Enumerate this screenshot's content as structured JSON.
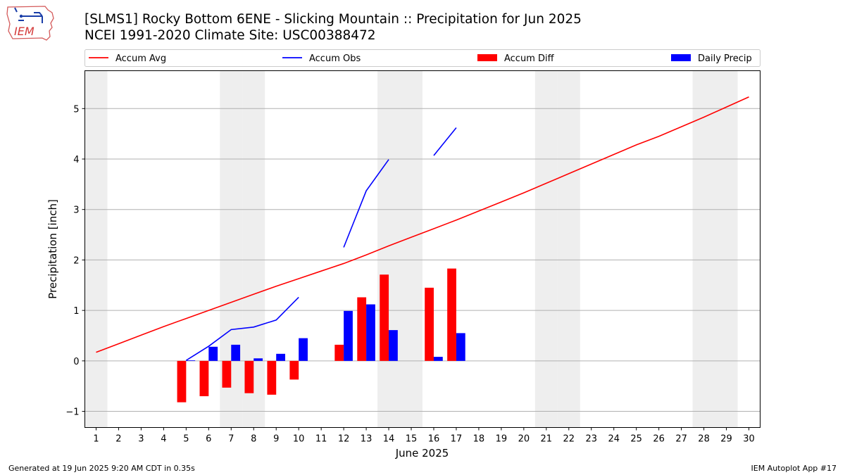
{
  "header": {
    "title_line1": "[SLMS1] Rocky Bottom 6ENE - Slicking Mountain :: Precipitation for Jun 2025",
    "title_line2": "NCEI 1991-2020 Climate Site: USC00388472",
    "logo_text": "IEM"
  },
  "footer": {
    "left": "Generated at 19 Jun 2025 9:20 AM CDT in 0.35s",
    "right": "IEM Autoplot App #17"
  },
  "colors": {
    "avg": "#ff0000",
    "obs": "#0000ff",
    "diff": "#ff0000",
    "daily": "#0000ff",
    "weekend": "#eeeeee",
    "grid": "#b0b0b0"
  },
  "chart_data": {
    "type": "bar",
    "xlabel": "June 2025",
    "ylabel": "Precipitation [inch]",
    "xlim": [
      0.5,
      30.5
    ],
    "ylim": [
      -1.32,
      5.75
    ],
    "yticks": [
      -1,
      0,
      1,
      2,
      3,
      4,
      5
    ],
    "ytick_labels": [
      "−1",
      "0",
      "1",
      "2",
      "3",
      "4",
      "5"
    ],
    "grid": "horizontal",
    "legend_position": "top",
    "weekend_days": [
      1,
      7,
      8,
      14,
      15,
      21,
      22,
      28,
      29
    ],
    "days": [
      1,
      2,
      3,
      4,
      5,
      6,
      7,
      8,
      9,
      10,
      11,
      12,
      13,
      14,
      15,
      16,
      17,
      18,
      19,
      20,
      21,
      22,
      23,
      24,
      25,
      26,
      27,
      28,
      29,
      30
    ],
    "legend": [
      {
        "label": "Accum Avg",
        "kind": "line",
        "color": "#ff0000"
      },
      {
        "label": "Accum Obs",
        "kind": "line",
        "color": "#0000ff"
      },
      {
        "label": "Accum Diff",
        "kind": "bar",
        "color": "#ff0000"
      },
      {
        "label": "Daily Precip",
        "kind": "bar",
        "color": "#0000ff"
      }
    ],
    "series": [
      {
        "name": "Accum Avg",
        "type": "line",
        "x": [
          1,
          2,
          3,
          4,
          5,
          6,
          7,
          8,
          9,
          10,
          11,
          12,
          13,
          14,
          15,
          16,
          17,
          18,
          19,
          20,
          21,
          22,
          23,
          24,
          25,
          26,
          27,
          28,
          29,
          30
        ],
        "y": [
          0.17,
          0.34,
          0.51,
          0.68,
          0.84,
          1.0,
          1.16,
          1.32,
          1.48,
          1.63,
          1.78,
          1.93,
          2.1,
          2.28,
          2.45,
          2.62,
          2.79,
          2.97,
          3.15,
          3.33,
          3.52,
          3.71,
          3.9,
          4.09,
          4.28,
          4.45,
          4.64,
          4.83,
          5.03,
          5.23
        ]
      },
      {
        "name": "Accum Obs",
        "type": "line",
        "segments": [
          {
            "x": [
              5,
              6,
              7,
              8,
              9,
              10
            ],
            "y": [
              0.01,
              0.29,
              0.62,
              0.67,
              0.81,
              1.26
            ]
          },
          {
            "x": [
              12,
              13,
              14
            ],
            "y": [
              2.25,
              3.37,
              3.99
            ]
          },
          {
            "x": [
              16,
              17
            ],
            "y": [
              4.07,
              4.62
            ]
          }
        ]
      },
      {
        "name": "Accum Diff",
        "type": "bar",
        "x": [
          5,
          6,
          7,
          8,
          9,
          10,
          12,
          13,
          14,
          16,
          17
        ],
        "y": [
          -0.82,
          -0.7,
          -0.53,
          -0.64,
          -0.67,
          -0.37,
          0.32,
          1.26,
          1.71,
          1.45,
          1.83
        ]
      },
      {
        "name": "Daily Precip",
        "type": "bar",
        "x": [
          5,
          6,
          7,
          8,
          9,
          10,
          12,
          13,
          14,
          16,
          17
        ],
        "y": [
          0.01,
          0.28,
          0.32,
          0.05,
          0.14,
          0.45,
          0.99,
          1.12,
          0.61,
          0.08,
          0.55
        ]
      }
    ]
  }
}
